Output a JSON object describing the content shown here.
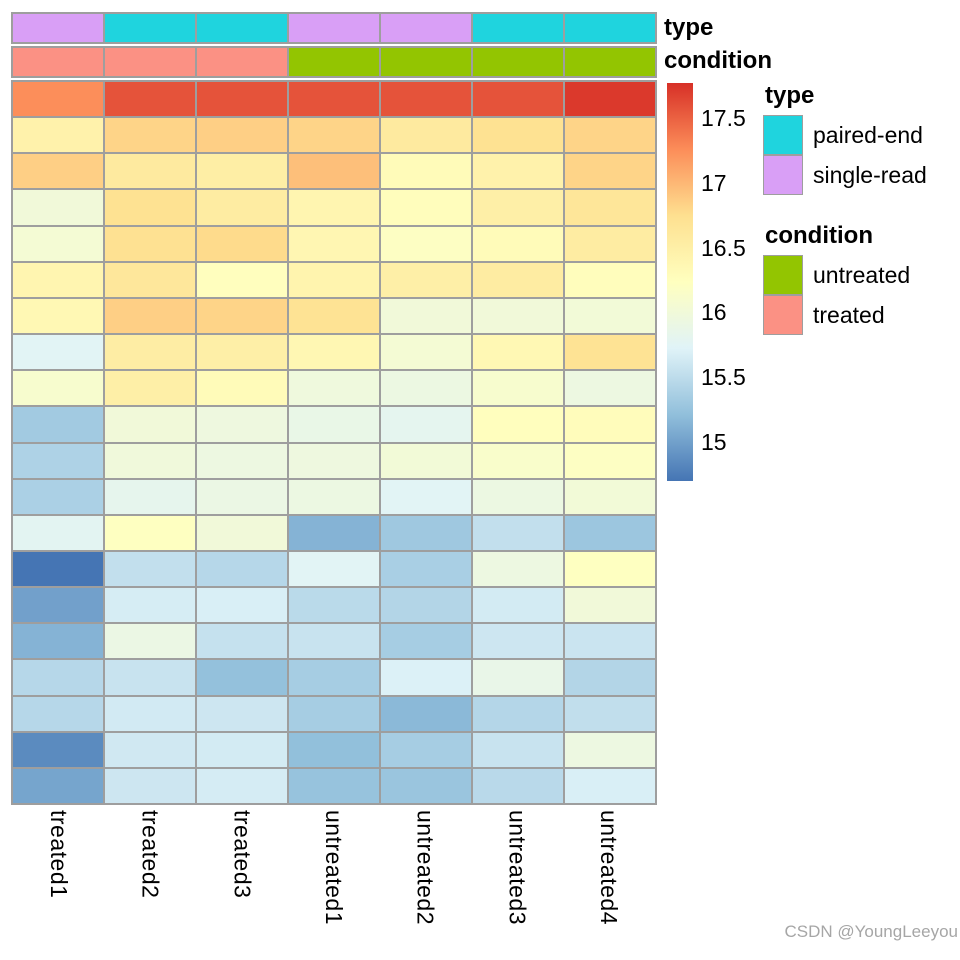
{
  "figure": {
    "watermark": "CSDN @YoungLeeyou"
  },
  "chart_data": {
    "type": "heatmap",
    "title": "",
    "grid_color": "#9E9E9E",
    "columns": [
      "treated1",
      "treated2",
      "treated3",
      "untreated1",
      "untreated2",
      "untreated3",
      "untreated4"
    ],
    "values": [
      [
        17.25,
        17.58,
        17.58,
        17.58,
        17.58,
        17.58,
        17.72
      ],
      [
        16.45,
        16.82,
        16.85,
        16.82,
        16.58,
        16.72,
        16.82
      ],
      [
        16.85,
        16.58,
        16.52,
        16.95,
        16.3,
        16.45,
        16.82
      ],
      [
        16.0,
        16.72,
        16.55,
        16.4,
        16.27,
        16.5,
        16.65
      ],
      [
        16.05,
        16.73,
        16.78,
        16.38,
        16.2,
        16.3,
        16.55
      ],
      [
        16.4,
        16.63,
        16.25,
        16.42,
        16.5,
        16.55,
        16.27
      ],
      [
        16.35,
        16.85,
        16.82,
        16.7,
        16.0,
        16.0,
        16.02
      ],
      [
        15.75,
        16.53,
        16.5,
        16.37,
        16.05,
        16.35,
        16.7
      ],
      [
        16.1,
        16.5,
        16.3,
        15.97,
        15.92,
        16.1,
        15.93
      ],
      [
        15.32,
        16.0,
        15.95,
        15.88,
        15.8,
        16.25,
        16.28
      ],
      [
        15.4,
        15.98,
        15.93,
        15.95,
        16.02,
        16.13,
        16.2
      ],
      [
        15.38,
        15.82,
        15.9,
        15.92,
        15.75,
        15.92,
        16.02
      ],
      [
        15.78,
        16.22,
        16.0,
        15.13,
        15.3,
        15.53,
        15.28
      ],
      [
        14.7,
        15.53,
        15.45,
        15.75,
        15.37,
        15.93,
        16.22
      ],
      [
        15.0,
        15.66,
        15.68,
        15.48,
        15.43,
        15.64,
        16.0
      ],
      [
        15.13,
        15.9,
        15.55,
        15.57,
        15.35,
        15.6,
        15.58
      ],
      [
        15.45,
        15.57,
        15.23,
        15.35,
        15.7,
        15.87,
        15.43
      ],
      [
        15.45,
        15.63,
        15.6,
        15.35,
        15.17,
        15.44,
        15.52
      ],
      [
        14.85,
        15.62,
        15.64,
        15.22,
        15.35,
        15.57,
        15.93
      ],
      [
        15.03,
        15.6,
        15.65,
        15.25,
        15.27,
        15.47,
        15.68
      ]
    ],
    "colorbar": {
      "vmin": 14.7,
      "vmax": 17.77,
      "tick_labels": [
        "17.5",
        "17",
        "16.5",
        "16",
        "15.5",
        "15"
      ],
      "palette_low_to_high": [
        "#4575B4",
        "#91BFDB",
        "#E0F3F8",
        "#FFFFBF",
        "#FEE090",
        "#FC8D59",
        "#D73027"
      ]
    },
    "column_annotations": [
      {
        "name": "type",
        "values": [
          "single-read",
          "paired-end",
          "paired-end",
          "single-read",
          "single-read",
          "paired-end",
          "paired-end"
        ]
      },
      {
        "name": "condition",
        "values": [
          "treated",
          "treated",
          "treated",
          "untreated",
          "untreated",
          "untreated",
          "untreated"
        ]
      }
    ],
    "legends": [
      {
        "title": "type",
        "entries": [
          {
            "label": "paired-end",
            "color": "#1FD4DE"
          },
          {
            "label": "single-read",
            "color": "#D99FF6"
          }
        ]
      },
      {
        "title": "condition",
        "entries": [
          {
            "label": "untreated",
            "color": "#93C501"
          },
          {
            "label": "treated",
            "color": "#FB9184"
          }
        ]
      }
    ]
  }
}
